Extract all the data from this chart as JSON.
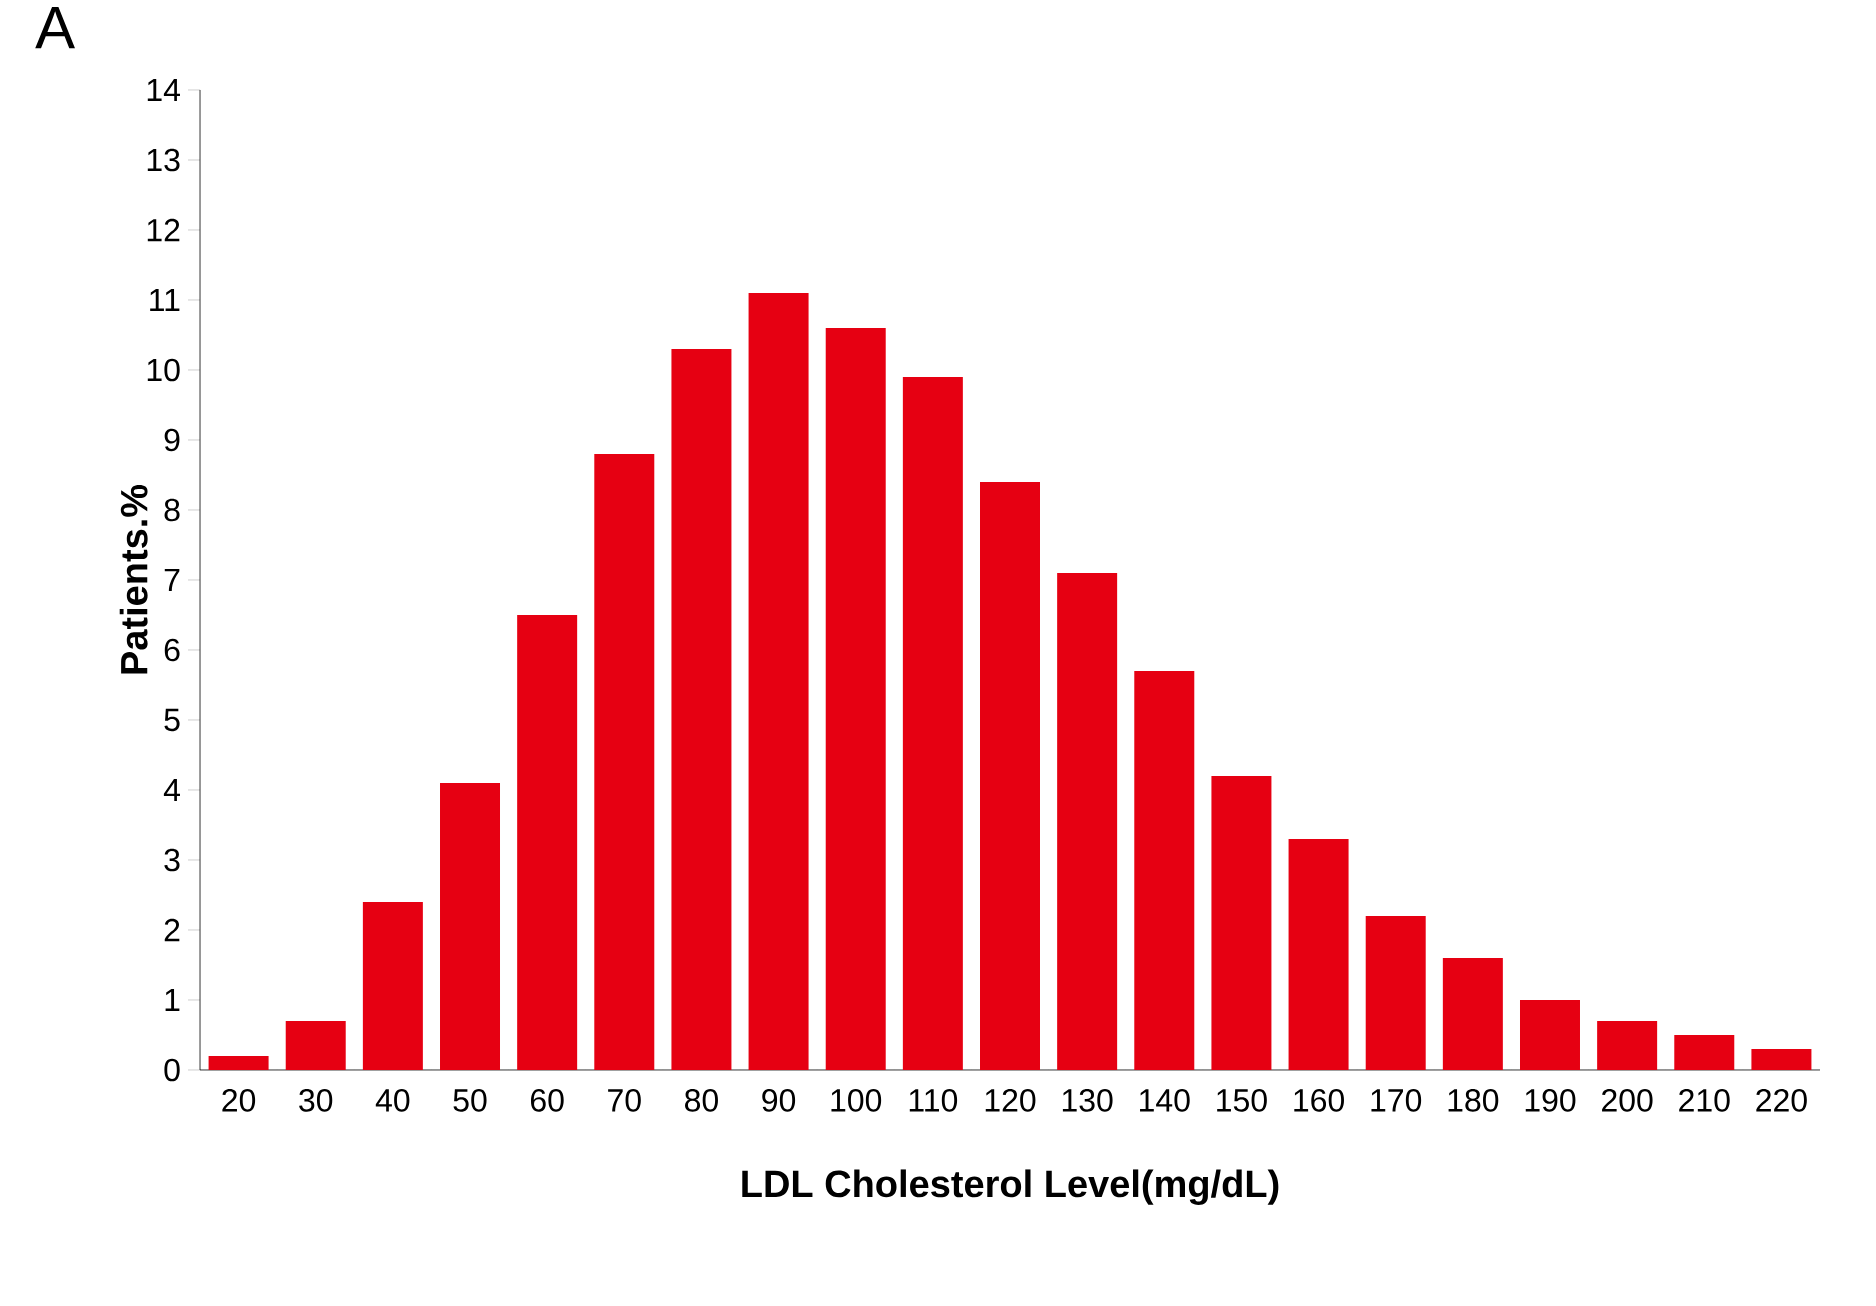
{
  "chart_data": {
    "type": "bar",
    "xlabel": "LDL Cholesterol Level(mg/dL)",
    "ylabel": "Patients.%",
    "annotations": [
      "A"
    ],
    "categories": [
      "20",
      "30",
      "40",
      "50",
      "60",
      "70",
      "80",
      "90",
      "100",
      "110",
      "120",
      "130",
      "140",
      "150",
      "160",
      "170",
      "180",
      "190",
      "200",
      "210",
      "220"
    ],
    "values": [
      0.2,
      0.7,
      2.4,
      4.1,
      6.5,
      8.8,
      10.3,
      11.1,
      10.6,
      9.9,
      8.4,
      7.1,
      5.7,
      4.2,
      3.3,
      2.2,
      1.6,
      1.0,
      0.7,
      0.5,
      0.3
    ],
    "color": "#e60012",
    "ylim": [
      0,
      14
    ],
    "yticks": [
      0,
      1,
      2,
      3,
      4,
      5,
      6,
      7,
      8,
      9,
      10,
      11,
      12,
      13,
      14
    ]
  }
}
